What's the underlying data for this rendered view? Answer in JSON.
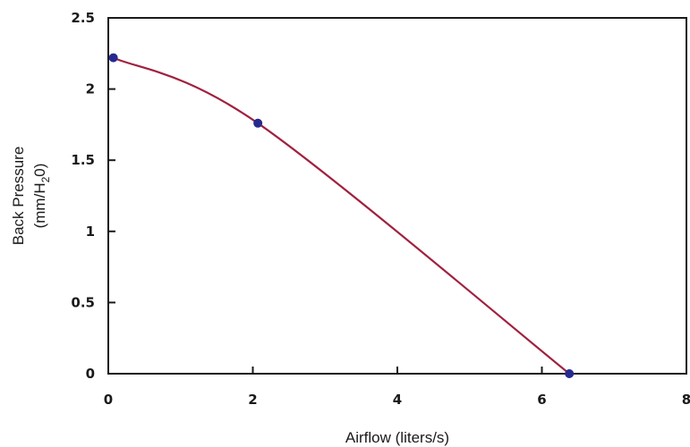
{
  "chart_data": {
    "type": "line",
    "x": [
      0.07,
      2.07,
      6.38
    ],
    "series": [
      {
        "values": [
          2.22,
          1.76,
          0.0
        ]
      }
    ],
    "xlabel": "Airflow (liters/s)",
    "ylabel_line1": "Back Pressure",
    "ylabel_line2_prefix": "(mm/H",
    "ylabel_line2_subscript": "2",
    "ylabel_line2_suffix": "0)",
    "xlim": [
      0,
      8
    ],
    "ylim": [
      0,
      2.5
    ],
    "x_ticks": [
      0,
      2,
      4,
      6,
      8
    ],
    "x_tick_labels": [
      "0",
      "2",
      "4",
      "6",
      "8"
    ],
    "y_ticks": [
      0,
      0.5,
      1,
      1.5,
      2,
      2.5
    ],
    "y_tick_labels": [
      "0",
      "0.5",
      "1",
      "1.5",
      "2",
      "2.5"
    ],
    "grid": false,
    "smooth": true,
    "line_color": "#a0213f",
    "marker_color": "#262a8f",
    "axis_color": "#1a1a1a"
  }
}
